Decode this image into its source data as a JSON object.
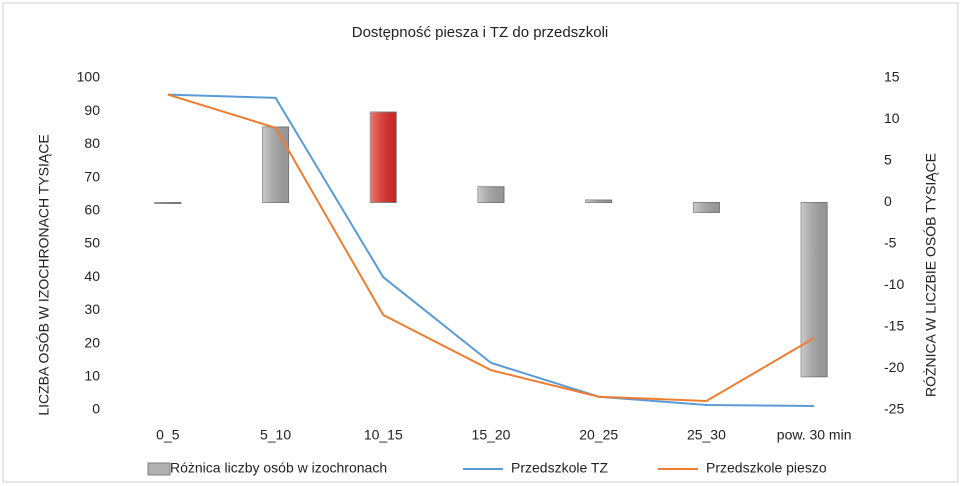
{
  "chart_data": {
    "type": "bar-line",
    "title": "Dostępność  piesza  i TZ do przedszkoli",
    "ylabel": "LICZBA OSÓB W IZOCHRONACH TYSIĄCE",
    "y2label": "RÓŻNICA W LICZBIE OSÓB TYSIĄCE",
    "categories": [
      "0_5",
      "5_10",
      "10_15",
      "15_20",
      "20_25",
      "25_30",
      "pow. 30 min"
    ],
    "series": [
      {
        "name": "Różnica liczby osób w izochronach",
        "type": "bar",
        "axis": "y2",
        "color": "#b0b0b0",
        "colors": [
          "#b0b0b0",
          "#b0b0b0",
          "#ee2a24",
          "#b0b0b0",
          "#b0b0b0",
          "#b0b0b0",
          "#b0b0b0"
        ],
        "values": [
          0,
          9.1,
          10.9,
          1.9,
          0.3,
          -1.2,
          -21
        ]
      },
      {
        "name": "Przedszkole TZ",
        "type": "line",
        "color": "#5b9bd5",
        "values": [
          95,
          94,
          40,
          14.2,
          4,
          1.5,
          1.2
        ]
      },
      {
        "name": "Przedszkole pieszo",
        "type": "line",
        "color": "#ed7d31",
        "values": [
          95,
          85,
          28.6,
          12,
          4,
          2.7,
          21.7
        ]
      }
    ],
    "ylim": [
      0,
      100
    ],
    "yticks": [
      0,
      10,
      20,
      30,
      40,
      50,
      60,
      70,
      80,
      90,
      100
    ],
    "y2lim": [
      -25,
      15
    ],
    "y2ticks": [
      -25,
      -20,
      -15,
      -10,
      -5,
      0,
      5,
      10,
      15
    ],
    "legend": "bottom"
  }
}
